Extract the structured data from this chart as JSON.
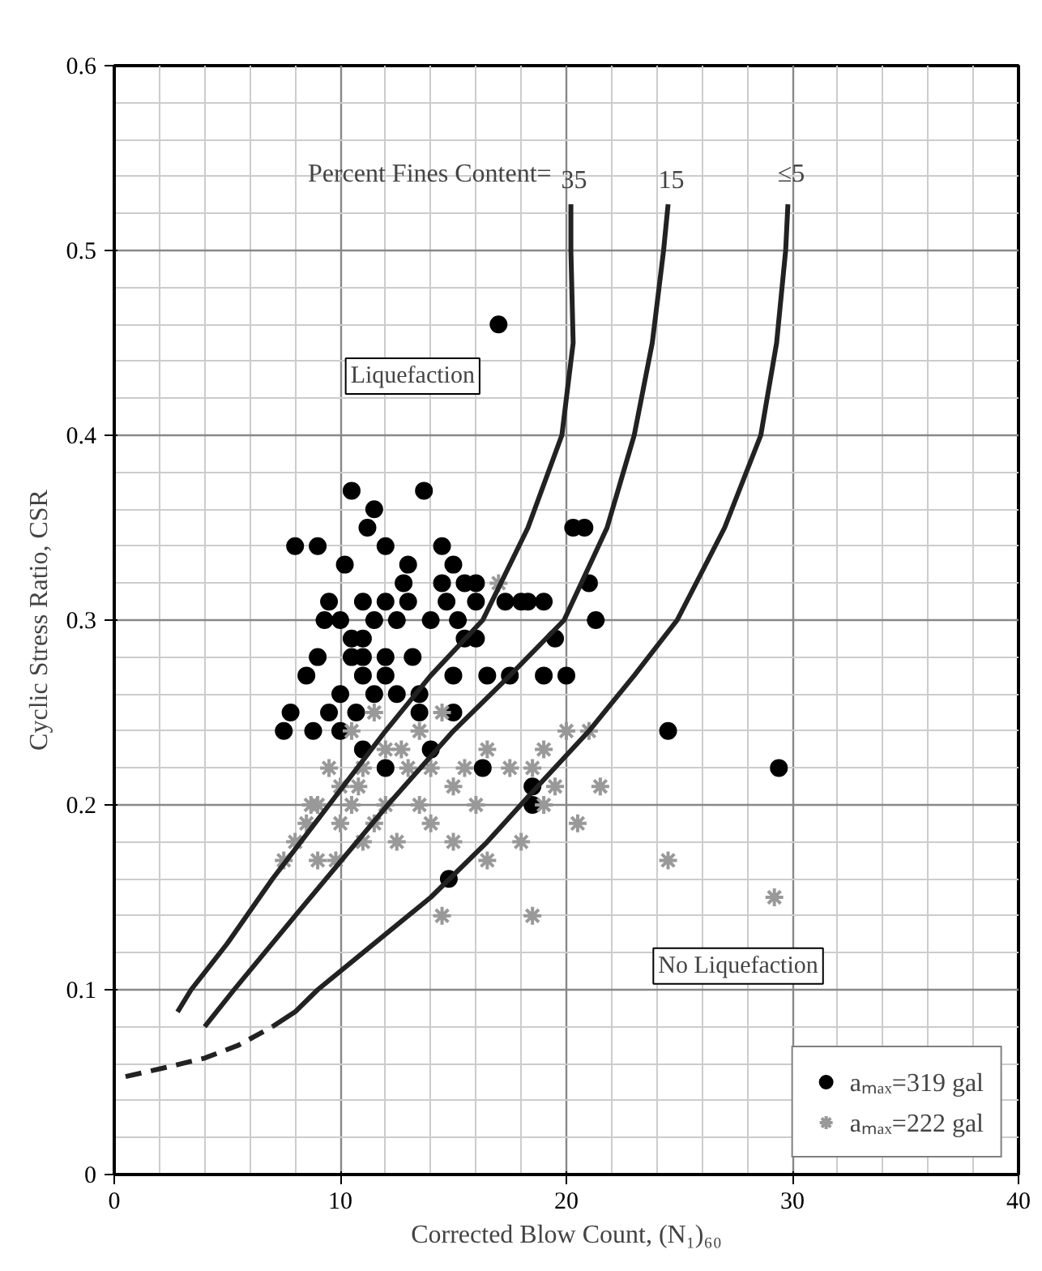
{
  "chart_data": {
    "type": "scatter",
    "xlabel": "Corrected Blow Count, (N₁)₆₀",
    "ylabel": "Cyclic Stress Ratio, CSR",
    "xlim": [
      0,
      40
    ],
    "ylim": [
      0,
      0.6
    ],
    "xticks": [
      0,
      10,
      20,
      30,
      40
    ],
    "yticks": [
      0,
      {
        "value": 0.1,
        "label": "0.1"
      },
      {
        "value": 0.2,
        "label": "0.2"
      },
      {
        "value": 0.3,
        "label": "0.3"
      },
      {
        "value": 0.4,
        "label": "0.4"
      },
      {
        "value": 0.5,
        "label": "0.5"
      },
      {
        "value": 0.6,
        "label": "0.6"
      }
    ],
    "grid": true,
    "legend": "bottom right",
    "annotations": [
      "Percent Fines Content=",
      "Liquefaction",
      "No Liquefaction"
    ],
    "series": [
      {
        "name": "aₘₐₓ=319 gal",
        "marker": "circle",
        "color": "#000000",
        "x": [
          7.5,
          7.8,
          8,
          8.5,
          8.8,
          9,
          9,
          9.3,
          9.5,
          9.5,
          10,
          10,
          10,
          10.2,
          10.5,
          10.5,
          10.5,
          10.7,
          11,
          11,
          11,
          11,
          11,
          11.2,
          11.5,
          11.5,
          11.5,
          12,
          12,
          12,
          12,
          12,
          12.5,
          12.5,
          12.8,
          13,
          13,
          13.2,
          13.5,
          13.5,
          13.7,
          14,
          14,
          14.5,
          14.5,
          14.7,
          15,
          15,
          15,
          15.2,
          15.5,
          15.5,
          16,
          16,
          16,
          16.3,
          16.5,
          17,
          17.5,
          18,
          18.3,
          18.5,
          18.5,
          19,
          19,
          19.5,
          20,
          20.3,
          20.8,
          21,
          21.3,
          24.5,
          29.4,
          14.8,
          17.3
        ],
        "values": [
          0.24,
          0.25,
          0.34,
          0.27,
          0.24,
          0.34,
          0.28,
          0.3,
          0.31,
          0.25,
          0.3,
          0.26,
          0.24,
          0.33,
          0.37,
          0.29,
          0.28,
          0.25,
          0.31,
          0.29,
          0.28,
          0.27,
          0.23,
          0.35,
          0.36,
          0.3,
          0.26,
          0.34,
          0.31,
          0.28,
          0.27,
          0.22,
          0.3,
          0.26,
          0.32,
          0.33,
          0.31,
          0.28,
          0.25,
          0.26,
          0.37,
          0.3,
          0.23,
          0.34,
          0.32,
          0.31,
          0.33,
          0.27,
          0.25,
          0.3,
          0.32,
          0.29,
          0.32,
          0.29,
          0.31,
          0.22,
          0.27,
          0.46,
          0.27,
          0.31,
          0.31,
          0.2,
          0.21,
          0.31,
          0.27,
          0.29,
          0.27,
          0.35,
          0.35,
          0.32,
          0.3,
          0.24,
          0.22,
          0.16,
          0.31
        ]
      },
      {
        "name": "aₘₐₓ=222 gal",
        "marker": "cross",
        "color": "#999999",
        "x": [
          7.5,
          8,
          8.5,
          9,
          9,
          9.5,
          10,
          10,
          10.5,
          10.5,
          11,
          11,
          11.5,
          11.5,
          12,
          12,
          12.5,
          13,
          13.5,
          13.5,
          14,
          14,
          14.5,
          14.5,
          15,
          15,
          15.5,
          16,
          16.5,
          17,
          17.5,
          18,
          18.5,
          18.5,
          19,
          19,
          19.5,
          20,
          20.5,
          21,
          21.5,
          24.5,
          29.2,
          16.5,
          12.7,
          10.8,
          9.8,
          8.7
        ],
        "values": [
          0.17,
          0.18,
          0.19,
          0.2,
          0.17,
          0.22,
          0.21,
          0.19,
          0.24,
          0.2,
          0.22,
          0.18,
          0.25,
          0.19,
          0.23,
          0.2,
          0.18,
          0.22,
          0.24,
          0.2,
          0.22,
          0.19,
          0.14,
          0.25,
          0.21,
          0.18,
          0.22,
          0.2,
          0.17,
          0.32,
          0.22,
          0.18,
          0.14,
          0.22,
          0.23,
          0.2,
          0.21,
          0.24,
          0.19,
          0.24,
          0.21,
          0.17,
          0.15,
          0.23,
          0.23,
          0.21,
          0.17,
          0.2
        ]
      },
      {
        "name": "35",
        "type": "line",
        "line_style": "solid",
        "color": "#222222",
        "x": [
          2.8,
          3.4,
          5,
          7,
          9.5,
          12,
          14,
          16.3,
          18.3,
          19.8,
          20.3,
          20.2,
          20.2
        ],
        "values": [
          0.088,
          0.1,
          0.125,
          0.16,
          0.2,
          0.24,
          0.27,
          0.3,
          0.35,
          0.4,
          0.45,
          0.5,
          0.525
        ]
      },
      {
        "name": "15",
        "type": "line",
        "line_style": "solid",
        "color": "#222222",
        "x": [
          4,
          5.3,
          8,
          12.1,
          15,
          17.5,
          19.9,
          21.8,
          23,
          23.8,
          24.3,
          24.5
        ],
        "values": [
          0.08,
          0.1,
          0.14,
          0.2,
          0.24,
          0.27,
          0.3,
          0.35,
          0.4,
          0.45,
          0.5,
          0.525
        ]
      },
      {
        "name": "≤5",
        "type": "line",
        "line_style": "solid",
        "color": "#222222",
        "x": [
          7,
          8,
          9,
          11,
          14,
          16.5,
          18.5,
          21,
          23,
          24.9,
          27,
          28.6,
          29.3,
          29.7,
          29.8
        ],
        "values": [
          0.08,
          0.088,
          0.1,
          0.12,
          0.15,
          0.18,
          0.207,
          0.24,
          0.27,
          0.3,
          0.35,
          0.4,
          0.45,
          0.5,
          0.525
        ]
      },
      {
        "type": "line",
        "line_style": "dashed",
        "color": "#222222",
        "x": [
          0.5,
          2.3,
          4,
          5.5,
          7
        ],
        "values": [
          0.053,
          0.058,
          0.063,
          0.07,
          0.08
        ]
      }
    ]
  }
}
